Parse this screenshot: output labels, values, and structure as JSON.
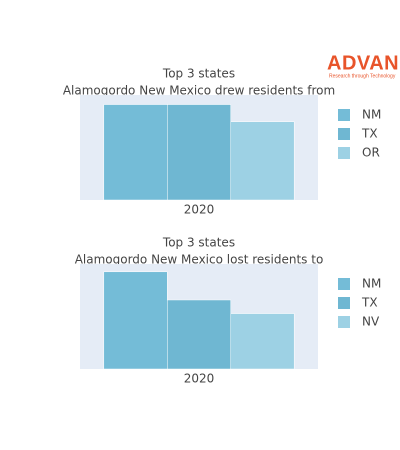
{
  "logo": {
    "name": "ADVAN",
    "tagline": "Research through Technology"
  },
  "chart_data": [
    {
      "type": "bar",
      "title": "Top 3 states",
      "subtitle": "Alamogordo New Mexico drew residents from",
      "categories": [
        "2020"
      ],
      "series": [
        {
          "name": "NM",
          "color": "#74bcd7",
          "values": [
            100
          ]
        },
        {
          "name": "TX",
          "color": "#6fb7d2",
          "values": [
            100
          ]
        },
        {
          "name": "OR",
          "color": "#9dd1e4",
          "values": [
            82
          ]
        }
      ],
      "ylim": [
        0,
        110
      ],
      "legend": "right"
    },
    {
      "type": "bar",
      "title": "Top 3 states",
      "subtitle": "Alamogordo New Mexico lost residents to",
      "categories": [
        "2020"
      ],
      "series": [
        {
          "name": "NM",
          "color": "#74bcd7",
          "values": [
            100
          ]
        },
        {
          "name": "TX",
          "color": "#6fb7d2",
          "values": [
            71
          ]
        },
        {
          "name": "NV",
          "color": "#9dd1e4",
          "values": [
            57
          ]
        }
      ],
      "ylim": [
        0,
        108
      ],
      "legend": "right"
    }
  ]
}
